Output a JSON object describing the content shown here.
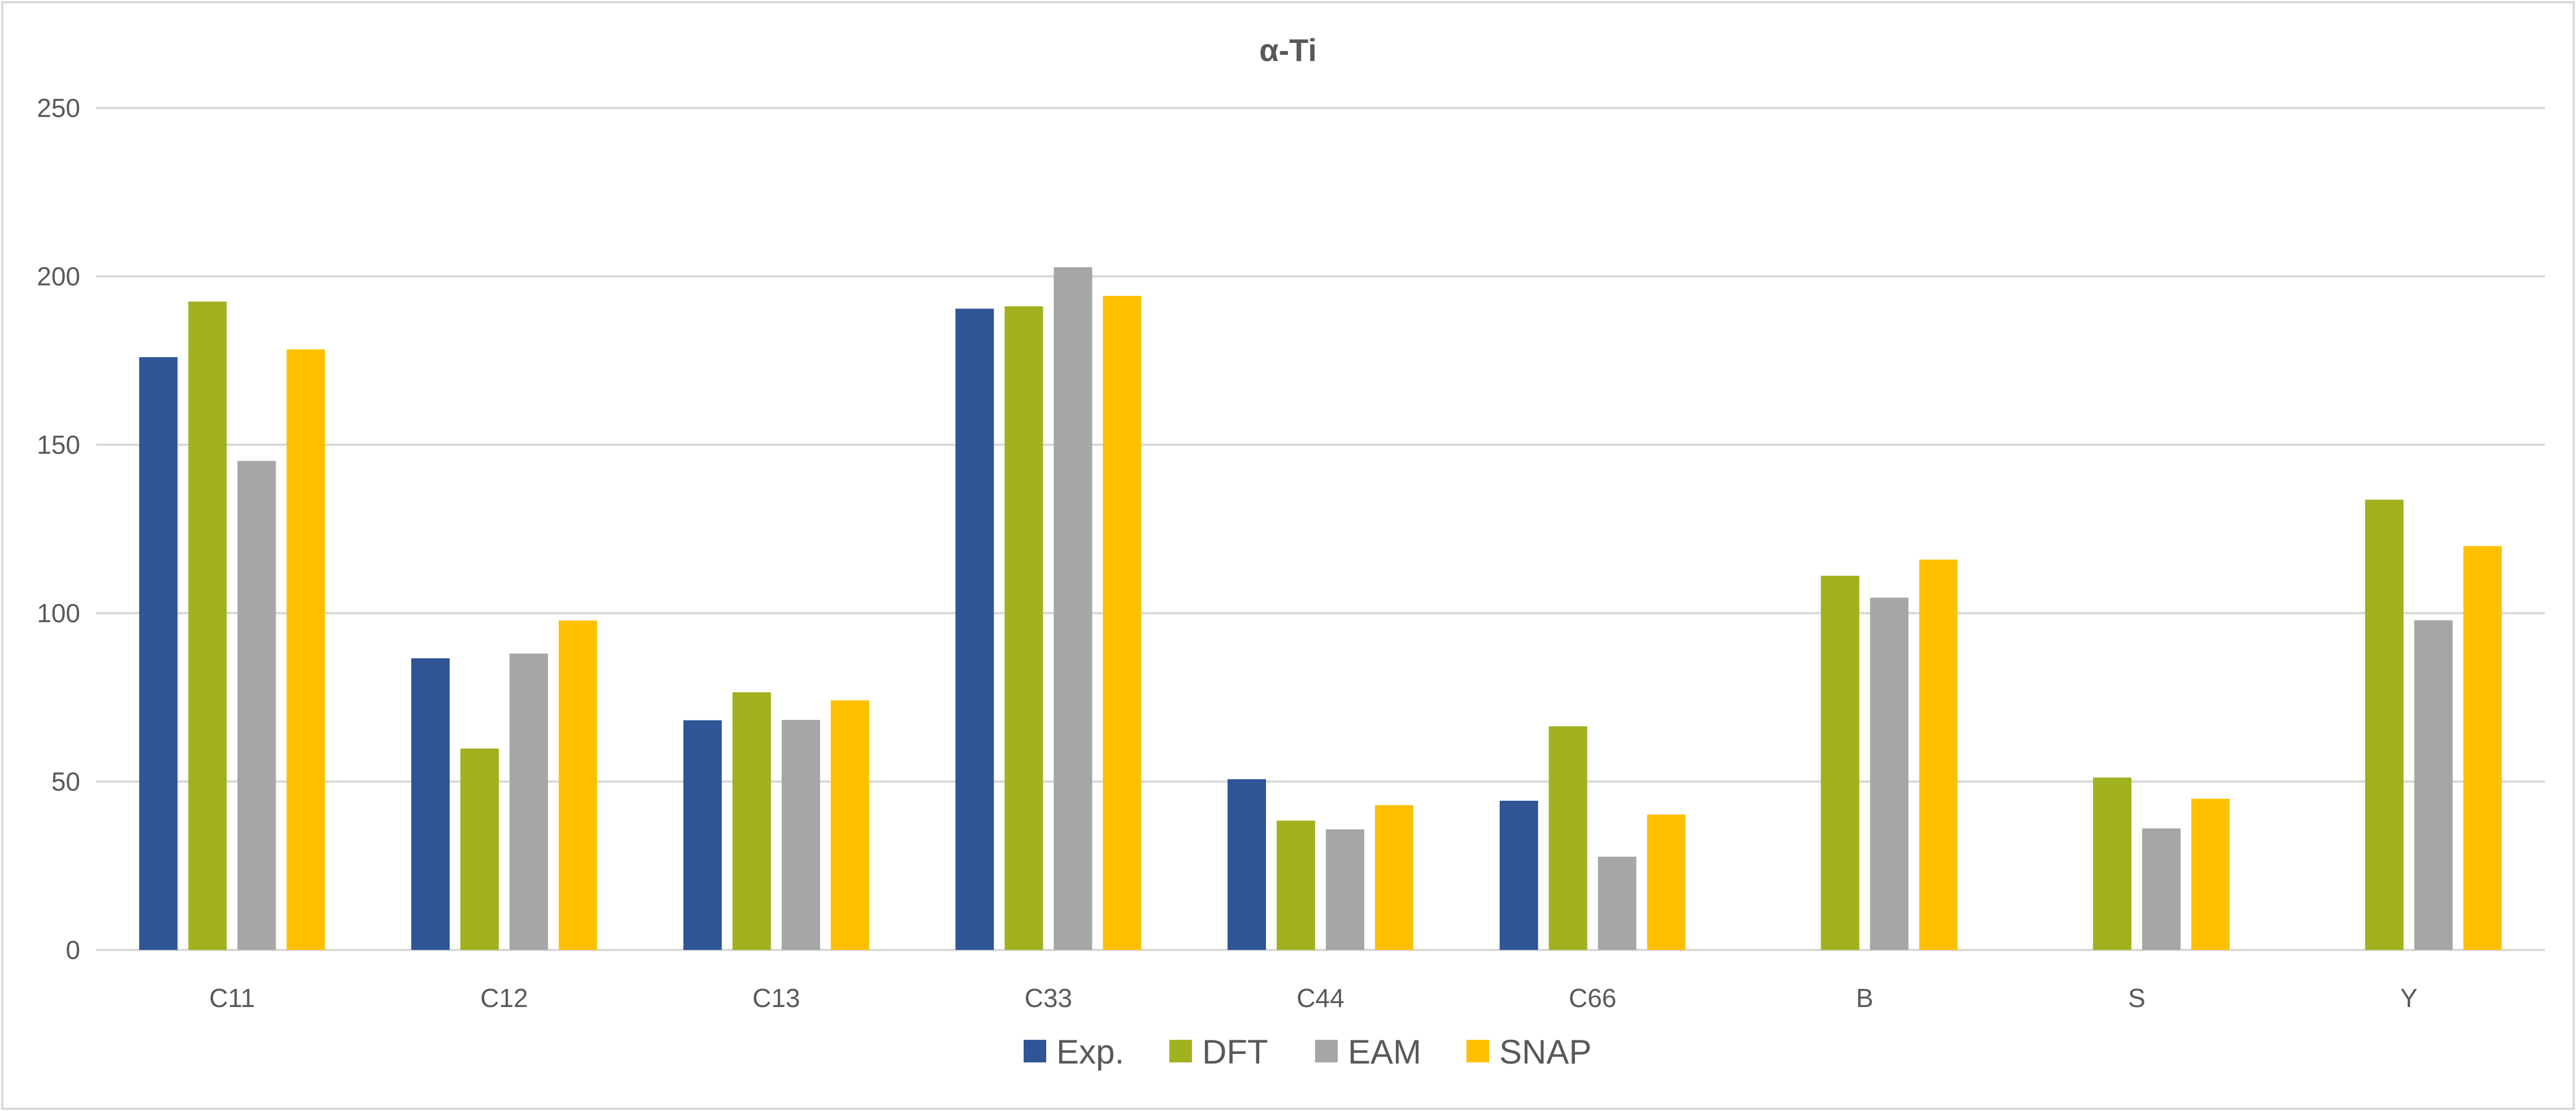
{
  "chart_data": {
    "type": "bar",
    "title": "α-Ti",
    "xlabel": "",
    "ylabel": "",
    "ylim": [
      0,
      250
    ],
    "yticks": [
      "0",
      "50",
      "100",
      "150",
      "200",
      "250"
    ],
    "grid": true,
    "legend_position": "bottom",
    "categories": [
      "C11",
      "C12",
      "C13",
      "C33",
      "C44",
      "C66",
      "B",
      "S",
      "Y"
    ],
    "series": [
      {
        "name": "Exp.",
        "color": "#2F5597",
        "values": [
          176.0,
          86.6,
          68.2,
          190.4,
          50.7,
          44.3,
          null,
          null,
          null
        ]
      },
      {
        "name": "DFT",
        "color": "#A2B11E",
        "values": [
          192.5,
          59.8,
          76.5,
          191.1,
          38.4,
          66.4,
          111.1,
          51.2,
          133.7
        ]
      },
      {
        "name": "EAM",
        "color": "#A6A6A6",
        "values": [
          145.2,
          88.0,
          68.3,
          202.7,
          35.8,
          27.7,
          104.6,
          36.1,
          97.9
        ]
      },
      {
        "name": "SNAP",
        "color": "#FFC000",
        "values": [
          178.3,
          97.8,
          74.1,
          194.2,
          43.0,
          40.2,
          115.9,
          44.9,
          119.9
        ]
      }
    ]
  }
}
